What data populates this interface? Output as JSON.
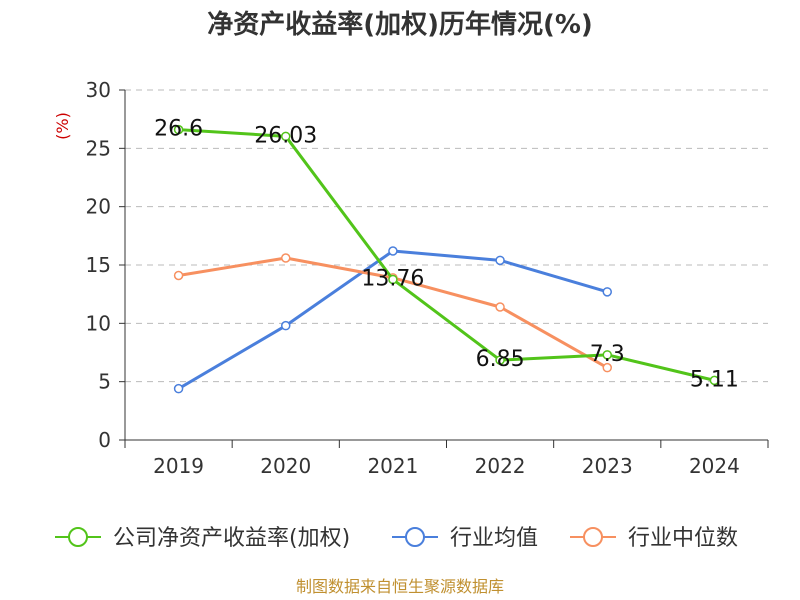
{
  "colors": {
    "company": "#52c41a",
    "industry_avg": "#4a7fdc",
    "industry_median": "#f79060",
    "unit": "#cc0000",
    "source": "#c09030",
    "grid": "#bbbbbb",
    "axis": "#333333"
  },
  "chart_data": {
    "type": "line",
    "title": "净资产收益率(加权)历年情况(%)",
    "ylabel": "(%)",
    "xlabel": "",
    "categories": [
      "2019",
      "2020",
      "2021",
      "2022",
      "2023",
      "2024"
    ],
    "ylim": [
      0,
      30
    ],
    "yticks": [
      0,
      5,
      10,
      15,
      20,
      25,
      30
    ],
    "grid": true,
    "legend_position": "bottom",
    "series": [
      {
        "name": "公司净资产收益率(加权)",
        "color_key": "company",
        "values": [
          26.6,
          26.03,
          13.76,
          6.85,
          7.3,
          5.11
        ],
        "labels": [
          "26.6",
          "26.03",
          "13.76",
          "6.85",
          "7.3",
          "5.11"
        ]
      },
      {
        "name": "行业均值",
        "color_key": "industry_avg",
        "values": [
          4.4,
          9.8,
          16.2,
          15.4,
          12.7,
          null
        ]
      },
      {
        "name": "行业中位数",
        "color_key": "industry_median",
        "values": [
          14.1,
          15.6,
          13.9,
          11.4,
          6.2,
          null
        ]
      }
    ],
    "source": "制图数据来自恒生聚源数据库"
  }
}
